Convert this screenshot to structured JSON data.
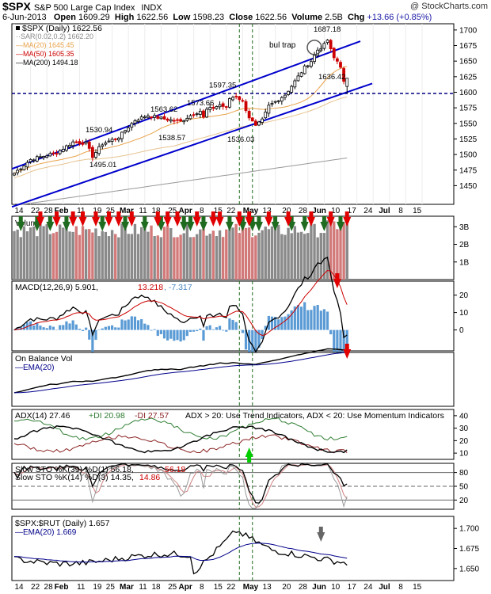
{
  "header": {
    "symbol": "$SPX",
    "name": "S&P 500 Large Cap Index",
    "exchange": "INDX",
    "credit": "@ StockCharts.com",
    "date": "6-Jun-2013",
    "open_label": "Open",
    "open": "1609.29",
    "high_label": "High",
    "high": "1622.56",
    "low_label": "Low",
    "low": "1598.23",
    "close_label": "Close",
    "close": "1622.56",
    "volume_label": "Volume",
    "volume": "2.5B",
    "chg_label": "Chg",
    "chg": "+13.66 (+0.85%)"
  },
  "colors": {
    "up": "#000000",
    "down": "#cc0000",
    "trend": "#0000cc",
    "ma20": "#e8a24a",
    "ma50": "#cc0000",
    "ma200": "#999999",
    "vol_up": "#8a8a8a",
    "vol_down": "#d27a7a",
    "green": "#1f6b1f",
    "red": "#e00000"
  },
  "x_axis": {
    "labels": [
      "14",
      "22",
      "28",
      "Feb",
      "11",
      "19",
      "25",
      "Mar",
      "11",
      "18",
      "25",
      "Apr",
      "8",
      "15",
      "22",
      "May",
      "13",
      "20",
      "28",
      "Jun",
      "10",
      "17",
      "24",
      "Jul",
      "8",
      "15"
    ],
    "bold": [
      "Feb",
      "Mar",
      "Apr",
      "May",
      "Jun",
      "Jul"
    ]
  },
  "chart_data": [
    {
      "id": "price",
      "type": "candlestick",
      "legend": {
        "main": "$SPX (Daily) 1622.56",
        "sar": "SAR(0.02,0.2) 1662.20",
        "ma20": "MA(20) 1645.45",
        "ma50": "MA(50) 1605.35",
        "ma200": "MA(200) 1494.18"
      },
      "y_ticks": [
        "1700",
        "1675",
        "1650",
        "1625",
        "1600",
        "1575",
        "1550",
        "1525",
        "1500",
        "1475",
        "1450"
      ],
      "ylim": [
        1420,
        1710
      ],
      "annotations": [
        {
          "text": "1687.18",
          "value": 1687.18
        },
        {
          "text": "1636.42",
          "value": 1636.42
        },
        {
          "text": "1597.35",
          "value": 1597.35
        },
        {
          "text": "1573.66",
          "value": 1573.66
        },
        {
          "text": "1563.62",
          "value": 1563.62
        },
        {
          "text": "1530.94",
          "value": 1530.94
        },
        {
          "text": "1538.57",
          "value": 1538.57
        },
        {
          "text": "1536.03",
          "value": 1536.03
        },
        {
          "text": "1495.01",
          "value": 1495.01
        },
        {
          "text": "bul trap"
        }
      ],
      "support_level": 1598
    },
    {
      "id": "volume",
      "type": "bar",
      "legend": "Volume",
      "y_ticks": [
        "3B",
        "2B",
        "1B"
      ],
      "ylim": [
        0,
        3.6
      ]
    },
    {
      "id": "macd",
      "type": "line",
      "legend": {
        "name": "MACD(12,26,9)",
        "v1": "5.901",
        "v2": "13.218",
        "v3": "-7.317"
      },
      "y_ticks": [
        "20",
        "10",
        "0"
      ],
      "ylim": [
        -12,
        28
      ]
    },
    {
      "id": "obv",
      "type": "line",
      "legend": {
        "name": "On Balance Vol",
        "ema": "EMA(20)"
      }
    },
    {
      "id": "adx",
      "type": "line",
      "legend": {
        "adx": "ADX(14) 27.46",
        "pdi": "+DI 20.98",
        "mdi": "-DI 27.57",
        "note": "ADX > 20: Use Trend Indicators, ADX < 20: Use Momentum Indicators"
      },
      "y_ticks": [
        "40",
        "30",
        "20",
        "10"
      ],
      "ylim": [
        5,
        45
      ]
    },
    {
      "id": "stoch",
      "type": "line",
      "legend": {
        "slow": "Slow STO %K(39) %D(1) 56.18,",
        "slow_d": "56.18",
        "fast": "Slow STO %K(14) %D(3) 14.35,",
        "fast_d": "14.86"
      },
      "y_ticks": [
        "80",
        "50",
        "20"
      ],
      "ylim": [
        0,
        100
      ]
    },
    {
      "id": "ratio",
      "type": "line",
      "legend": {
        "main": "$SPX:$RUT (Daily) 1.657",
        "ema": "EMA(20) 1.669"
      },
      "y_ticks": [
        "1.700",
        "1.675",
        "1.650"
      ],
      "ylim": [
        1.635,
        1.715
      ]
    }
  ]
}
